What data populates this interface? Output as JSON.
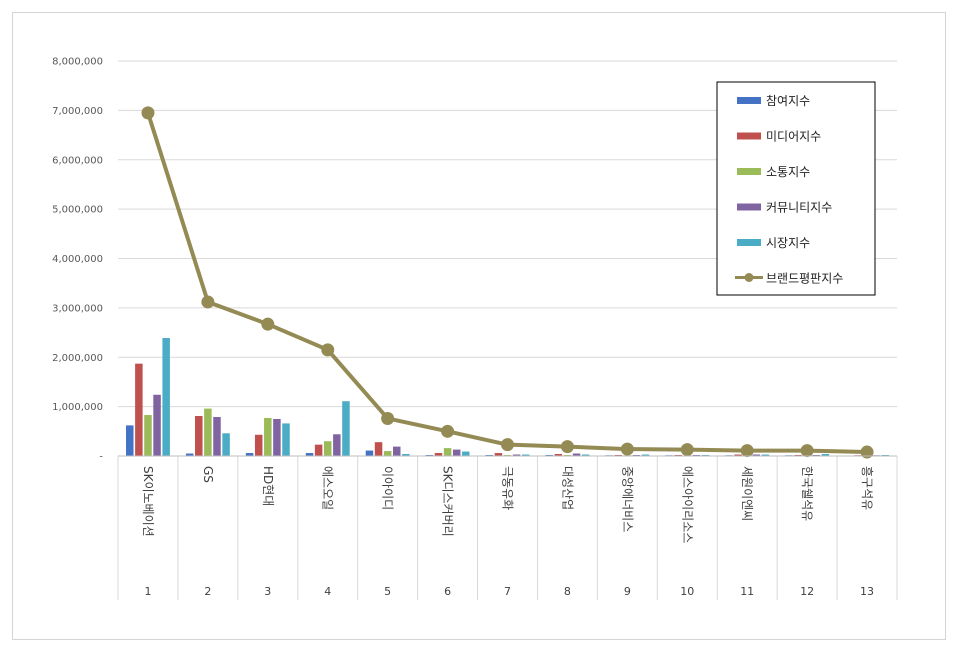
{
  "chart_data": {
    "type": "bar",
    "categories": [
      "SK이노베이션",
      "GS",
      "HD현대",
      "에스오일",
      "이아이디",
      "SK디스커버리",
      "극동유화",
      "대성산업",
      "중앙에너비스",
      "에스아이리소스",
      "세원이엔씨",
      "한국쉘석유",
      "흥구석유"
    ],
    "ranks": [
      "1",
      "2",
      "3",
      "4",
      "5",
      "6",
      "7",
      "8",
      "9",
      "10",
      "11",
      "12",
      "13"
    ],
    "ylim": [
      0,
      8000000
    ],
    "yticks": [
      "-",
      "1,000,000",
      "2,000,000",
      "3,000,000",
      "4,000,000",
      "5,000,000",
      "6,000,000",
      "7,000,000",
      "8,000,000"
    ],
    "series": [
      {
        "name": "참여지수",
        "color": "#4472c4",
        "values": [
          620000,
          50000,
          60000,
          60000,
          110000,
          20000,
          20000,
          20000,
          15000,
          15000,
          15000,
          15000,
          10000
        ]
      },
      {
        "name": "미디어지수",
        "color": "#c0504d",
        "values": [
          1870000,
          810000,
          430000,
          230000,
          280000,
          60000,
          60000,
          40000,
          20000,
          20000,
          30000,
          20000,
          15000
        ]
      },
      {
        "name": "소통지수",
        "color": "#9bbb59",
        "values": [
          830000,
          960000,
          770000,
          300000,
          100000,
          160000,
          20000,
          20000,
          15000,
          15000,
          20000,
          15000,
          10000
        ]
      },
      {
        "name": "커뮤니티지수",
        "color": "#8064a2",
        "values": [
          1240000,
          790000,
          750000,
          440000,
          190000,
          130000,
          30000,
          50000,
          20000,
          20000,
          30000,
          20000,
          15000
        ]
      },
      {
        "name": "시장지수",
        "color": "#4bacc6",
        "values": [
          2390000,
          460000,
          660000,
          1110000,
          40000,
          90000,
          30000,
          30000,
          30000,
          20000,
          30000,
          40000,
          20000
        ]
      }
    ],
    "line": {
      "name": "브랜드평판지수",
      "color": "#948a54",
      "values": [
        6950000,
        3120000,
        2670000,
        2150000,
        760000,
        500000,
        230000,
        190000,
        140000,
        130000,
        110000,
        110000,
        80000
      ]
    },
    "legend_position": "top-right",
    "grid": true
  }
}
